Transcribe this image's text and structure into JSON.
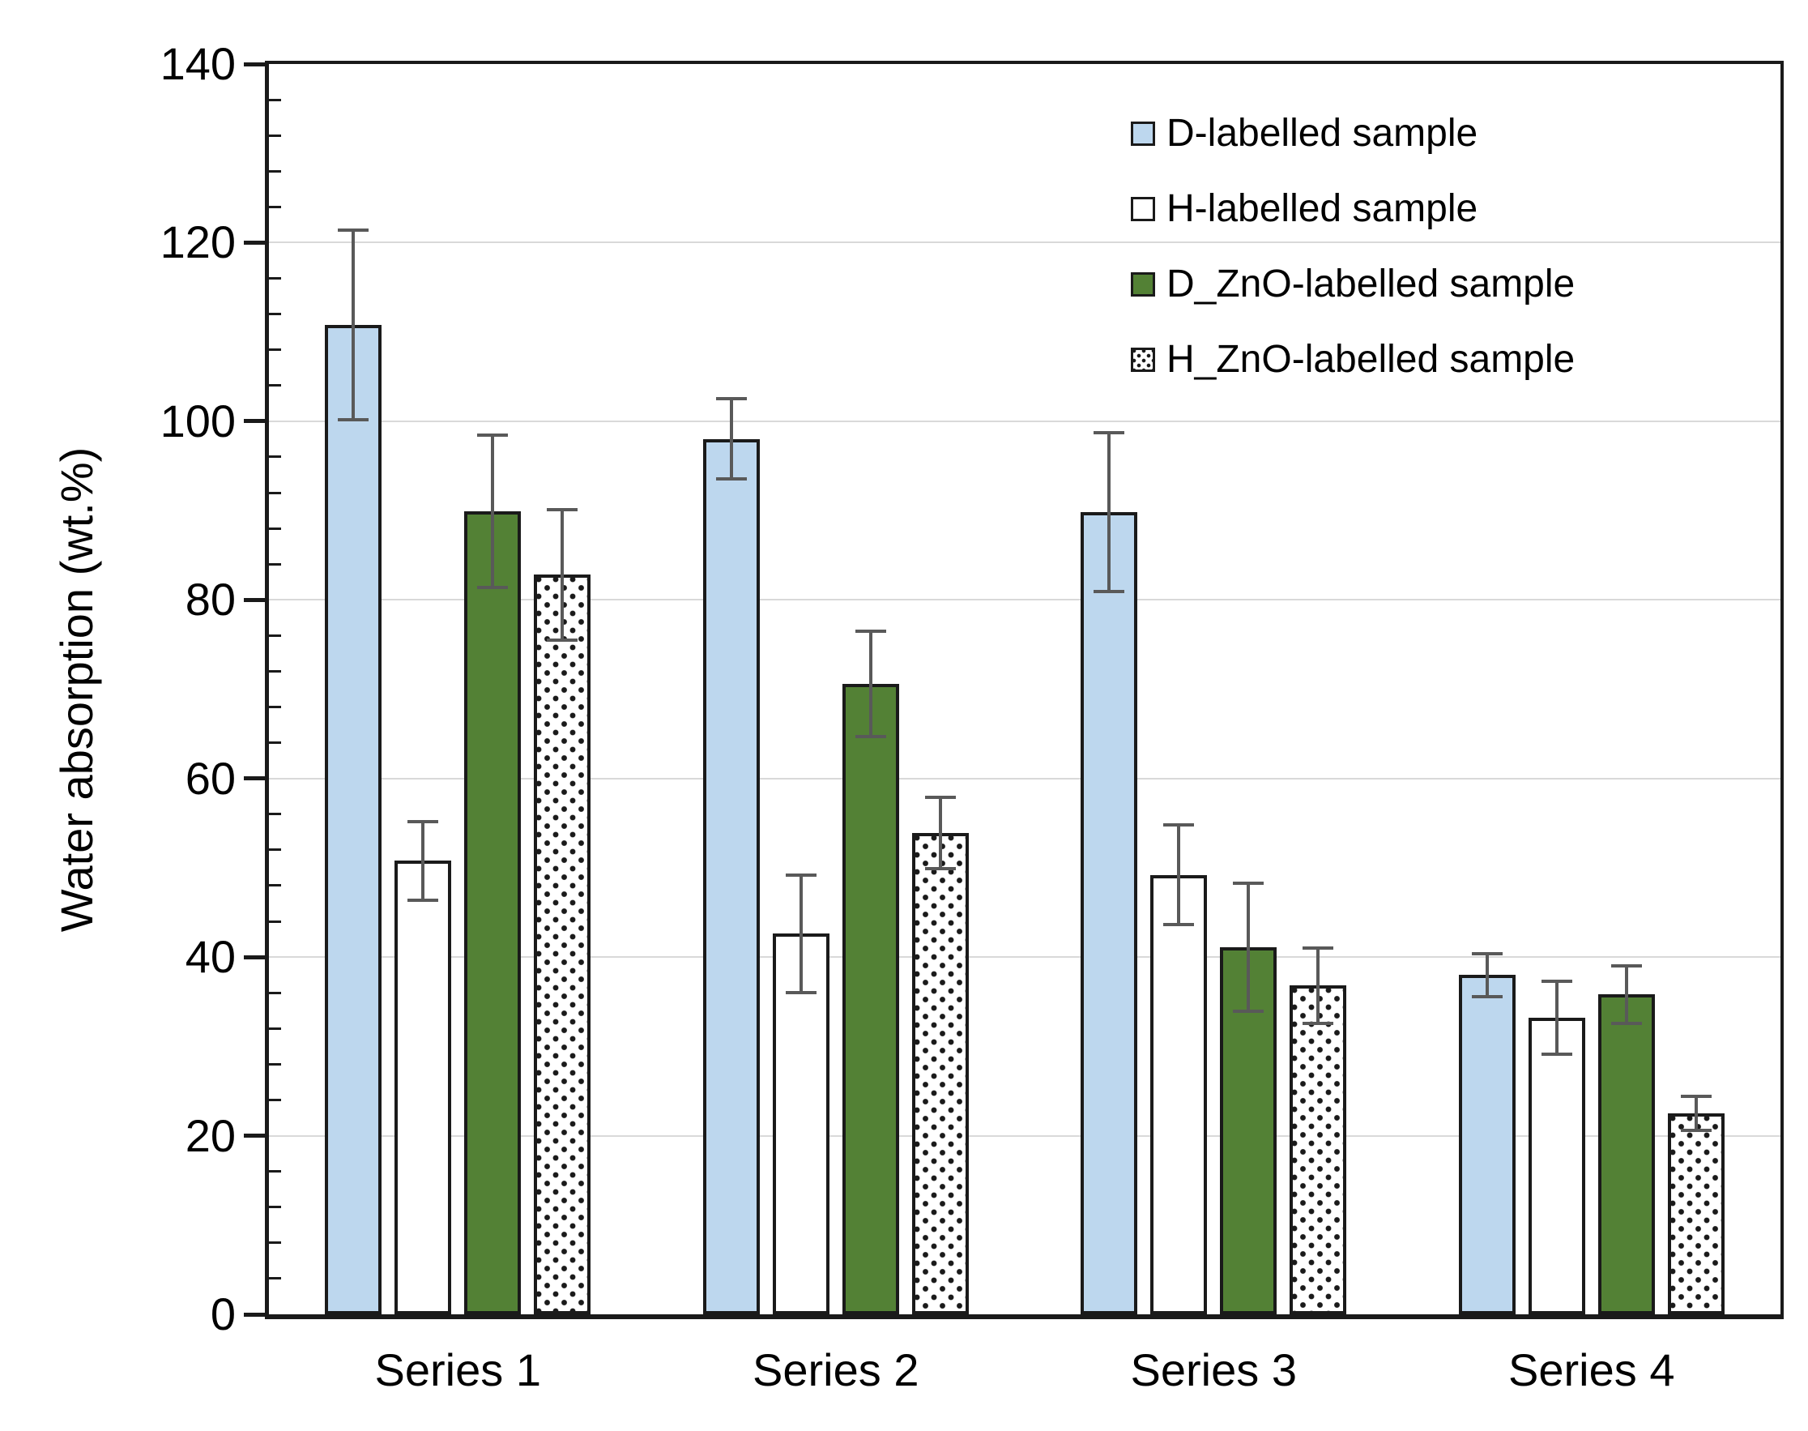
{
  "chart_data": {
    "type": "bar",
    "title": "",
    "ylabel": "Water absorption (wt.%)",
    "xlabel": "",
    "ylim": [
      0,
      140
    ],
    "y_major_tick": 20,
    "y_minor_tick": 4,
    "y_tick_labels": [
      "0",
      "20",
      "40",
      "60",
      "80",
      "100",
      "120",
      "140"
    ],
    "grid": "horizontal-major",
    "legend_position": "top-right-inside",
    "error_bars": true,
    "categories": [
      "Series 1",
      "Series 2",
      "Series 3",
      "Series 4"
    ],
    "series": [
      {
        "name": "D-labelled sample",
        "fill": "#BDD7EE",
        "pattern": "solid",
        "values": [
          110.8,
          98.0,
          89.8,
          38.0
        ],
        "errors": [
          10.6,
          4.5,
          8.9,
          2.4
        ]
      },
      {
        "name": "H-labelled sample",
        "fill": "#FFFFFF",
        "pattern": "solid",
        "values": [
          50.8,
          42.6,
          49.2,
          33.2
        ],
        "errors": [
          4.4,
          6.6,
          5.6,
          4.1
        ]
      },
      {
        "name": "D_ZnO-labelled sample",
        "fill": "#538135",
        "pattern": "solid",
        "values": [
          89.9,
          70.6,
          41.1,
          35.8
        ],
        "errors": [
          8.5,
          5.9,
          7.2,
          3.2
        ]
      },
      {
        "name": "H_ZnO-labelled sample",
        "fill": "#FFFFFF",
        "pattern": "dots",
        "values": [
          82.8,
          53.9,
          36.8,
          22.5
        ],
        "errors": [
          7.3,
          4.0,
          4.2,
          1.9
        ]
      }
    ],
    "colors": {
      "bar_border": "#1A1A1A",
      "error_bar": "#595959",
      "gridline": "#D9D9D9",
      "axis": "#1A1A1A",
      "text": "#000000",
      "pattern_dot": "#1A1A1A",
      "background": "#FFFFFF"
    }
  }
}
